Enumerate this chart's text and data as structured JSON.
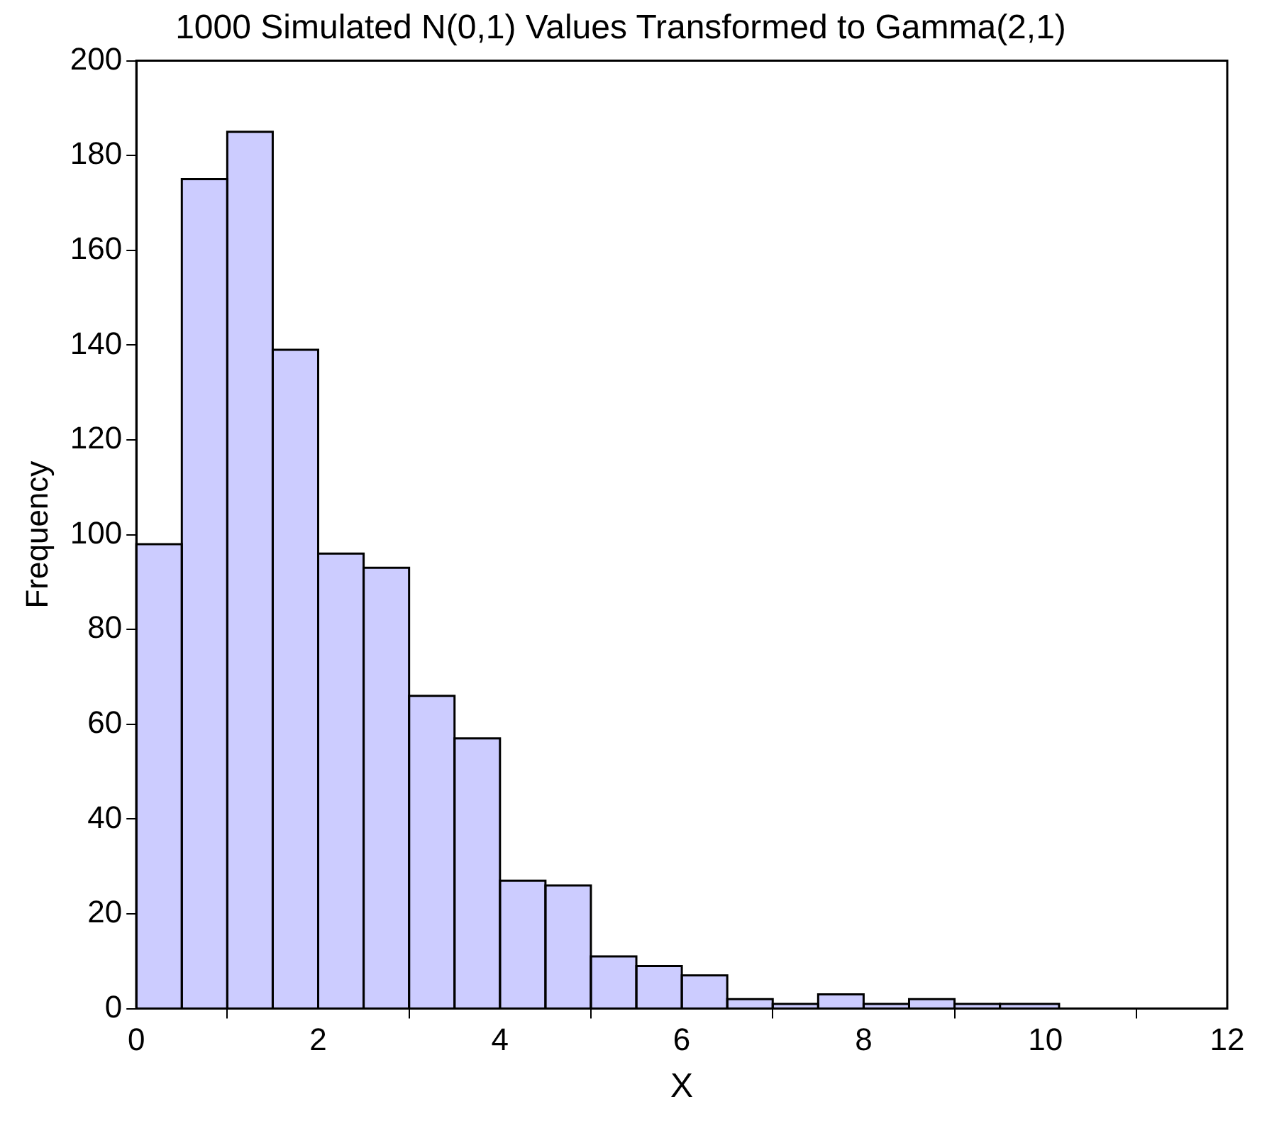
{
  "chart_data": {
    "type": "histogram",
    "title": "1000 Simulated N(0,1) Values Transformed to Gamma(2,1)",
    "xlabel": "X",
    "ylabel": "Frequency",
    "bins": [
      0,
      0.5,
      1,
      1.5,
      2,
      2.5,
      3,
      3.5,
      4,
      4.5,
      5,
      5.5,
      6,
      6.5,
      7,
      7.5,
      8,
      8.5,
      9,
      9.5,
      10.15
    ],
    "values": [
      98,
      175,
      185,
      139,
      96,
      93,
      66,
      57,
      27,
      26,
      11,
      9,
      7,
      2,
      1,
      3,
      1,
      2,
      1,
      1
    ],
    "color": "#ccccff",
    "xlim": [
      0,
      12
    ],
    "xticks": [
      0,
      2,
      4,
      6,
      8,
      10,
      12
    ],
    "ylim": [
      0,
      200
    ],
    "yticks": [
      0,
      20,
      40,
      60,
      80,
      100,
      120,
      140,
      160,
      180,
      200
    ],
    "grid": false,
    "legend": false
  }
}
